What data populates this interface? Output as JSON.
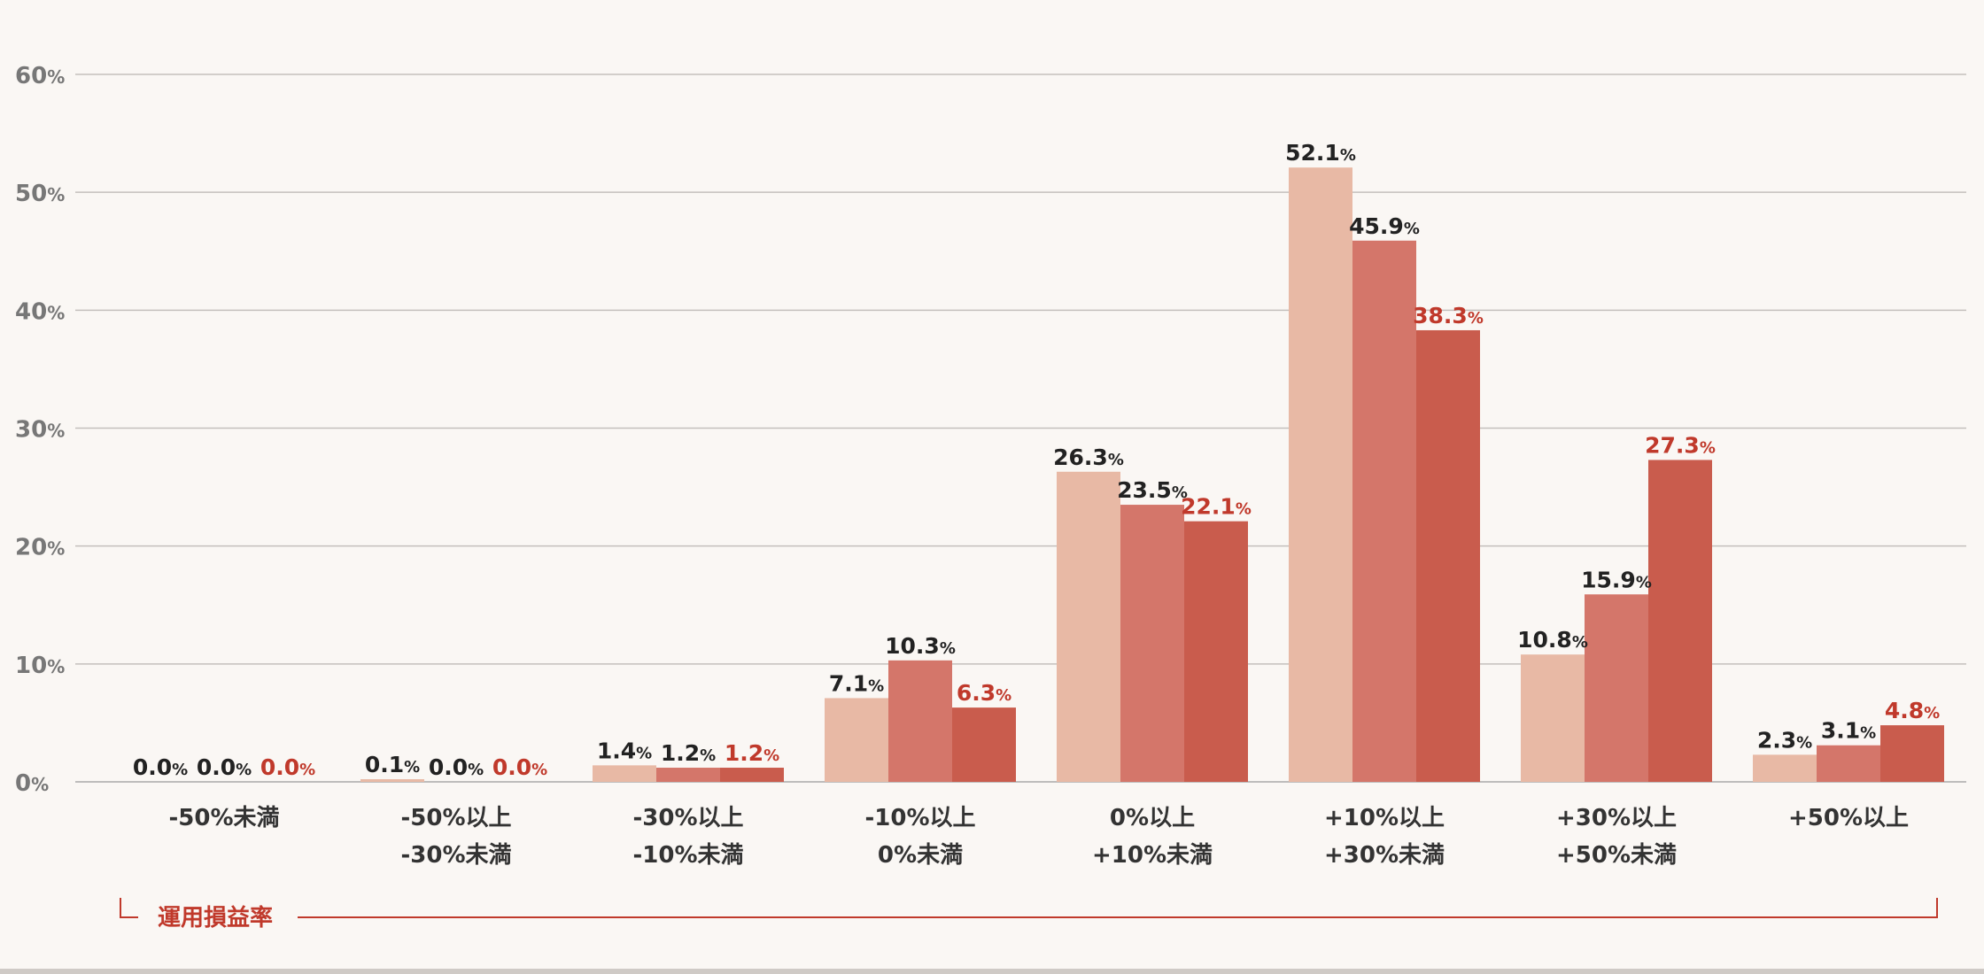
{
  "chart_data": {
    "type": "bar",
    "categories": [
      [
        "-50%未満"
      ],
      [
        "-50%以上",
        "-30%未満"
      ],
      [
        "-30%以上",
        "-10%未満"
      ],
      [
        "-10%以上",
        "0%未満"
      ],
      [
        "0%以上",
        "+10%未満"
      ],
      [
        "+10%以上",
        "+30%未満"
      ],
      [
        "+30%以上",
        "+50%未満"
      ],
      [
        "+50%以上"
      ]
    ],
    "series": [
      {
        "color": "#e8b9a5",
        "label_color": "#222222",
        "values": [
          0.0,
          0.1,
          1.4,
          7.1,
          26.3,
          52.1,
          10.8,
          2.3
        ]
      },
      {
        "color": "#d4766a",
        "label_color": "#222222",
        "values": [
          0.0,
          0.0,
          1.2,
          10.3,
          23.5,
          45.9,
          15.9,
          3.1
        ]
      },
      {
        "color": "#c95c4d",
        "label_color": "#c0392b",
        "values": [
          0.0,
          0.0,
          1.2,
          6.3,
          22.1,
          38.3,
          27.3,
          4.8
        ]
      }
    ],
    "value_suffix": "%",
    "yticks": [
      0,
      10,
      20,
      30,
      40,
      50,
      60
    ],
    "ytick_suffix": "%",
    "ylim": [
      0,
      60
    ],
    "xlabel": "運用損益率",
    "xlabel_color": "#c0392b",
    "grid": true,
    "legend": "none"
  }
}
